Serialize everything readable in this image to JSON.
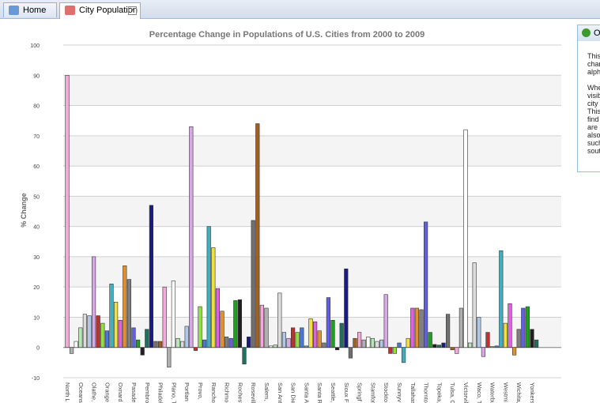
{
  "tabs": [
    "Home",
    "City Population"
  ],
  "panel": {
    "title": "Ov",
    "lines": [
      "This",
      "char",
      "alph",
      "",
      "Whe",
      "visib",
      "city",
      "This",
      "find",
      "are",
      "also",
      "such",
      "sout"
    ]
  },
  "chart_data": {
    "type": "bar",
    "title": "Percentage Change in Populations of U.S. Cities from 2000 to 2009",
    "y_label": "% Change",
    "categories": [
      "North L",
      null,
      null,
      "Oceansi",
      null,
      null,
      "Olathe,",
      null,
      null,
      "Orange",
      null,
      null,
      "Oxnard",
      null,
      null,
      "Pasade",
      null,
      null,
      "Pembro",
      null,
      null,
      "Philadel",
      null,
      null,
      "Plano, T",
      null,
      null,
      "Portlan",
      null,
      null,
      "Provo, ",
      null,
      null,
      "Rancho",
      null,
      null,
      "Richmo",
      null,
      null,
      "Rocheste",
      null,
      null,
      "Rosevill",
      null,
      null,
      "Salem, ",
      null,
      null,
      "San Ant",
      null,
      null,
      "San Die",
      null,
      null,
      "Santa A",
      null,
      null,
      "Santa R",
      null,
      null,
      "Seattle,",
      null,
      null,
      "Sioux F",
      null,
      null,
      "Springf",
      null,
      null,
      "Stamfor",
      null,
      null,
      "Stockto",
      null,
      null,
      "Sunnyv",
      null,
      null,
      "Tallahas",
      null,
      null,
      "Thornto",
      null,
      null,
      "Topeka,",
      null,
      null,
      "Tulsa, O",
      null,
      null,
      "Victorvil",
      null,
      null,
      "Waco, T",
      null,
      null,
      "Waterbu",
      null,
      null,
      "Westmi",
      null,
      null,
      "Wichita,",
      null,
      null,
      "Yonkers",
      null
    ],
    "values": [
      90,
      -2,
      2,
      6.5,
      11,
      10.5,
      30,
      10.5,
      8,
      5.5,
      21,
      15,
      9,
      27,
      22.5,
      6.5,
      2.5,
      -2.5,
      6,
      47,
      2,
      2,
      20,
      -6.5,
      22,
      3,
      2,
      7,
      73,
      -1,
      13.5,
      2.5,
      40,
      33,
      19.5,
      12,
      3.5,
      3,
      15.5,
      15.8,
      -5.5,
      3.5,
      42,
      74,
      14,
      13,
      0.5,
      0.8,
      18,
      5,
      3,
      6.5,
      5,
      6.5,
      0.5,
      9.5,
      8.5,
      5.5,
      1.5,
      16.5,
      9,
      -0.8,
      8,
      26,
      -3.5,
      3,
      5,
      2.5,
      3.5,
      3,
      2,
      2.5,
      17.5,
      -2,
      -2,
      1.5,
      -5,
      3,
      13,
      13,
      12.5,
      41.5,
      5,
      1,
      0.8,
      1.5,
      11,
      -0.8,
      -2,
      13,
      72,
      1.5,
      28,
      10,
      -3,
      5,
      0.3,
      0.5,
      32,
      8,
      14.5,
      -2.5,
      6,
      13,
      13.5,
      6,
      2.5
    ],
    "colors": [
      "#f5a9d8",
      "#b0b0b0",
      "#ffffff",
      "#b5e8b5",
      "#dcdcdc",
      "#b0c8e8",
      "#d8a8e8",
      "#c03030",
      "#90e040",
      "#4a78d8",
      "#40b0c0",
      "#f0e040",
      "#e060e0",
      "#e09030",
      "#808080",
      "#6060e0",
      "#20a020",
      "#202020",
      "#207060",
      "#1a1a80",
      "#707070",
      "#a06020"
    ],
    "ylim": [
      -10,
      100
    ],
    "yticks": [
      -10,
      0,
      10,
      20,
      30,
      40,
      50,
      60,
      70,
      80,
      90,
      100
    ],
    "grid": true
  }
}
